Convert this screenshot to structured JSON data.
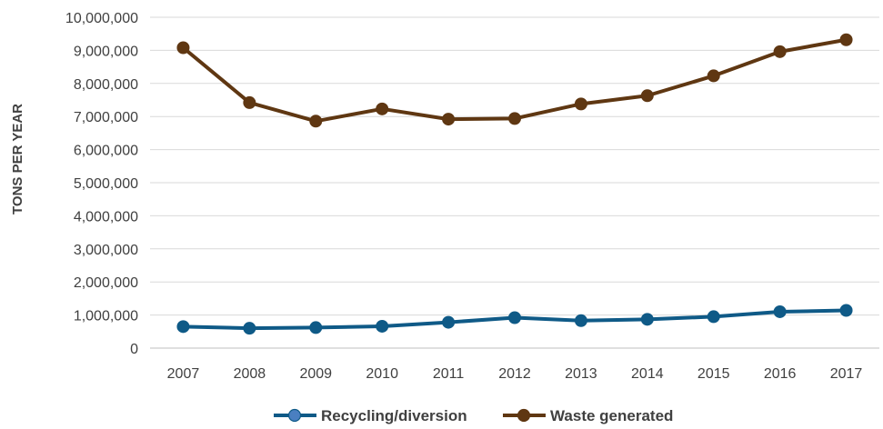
{
  "chart_data": {
    "type": "line",
    "title": "",
    "xlabel": "",
    "ylabel": "TONS PER YEAR",
    "x": [
      "2007",
      "2008",
      "2009",
      "2010",
      "2011",
      "2012",
      "2013",
      "2014",
      "2015",
      "2016",
      "2017"
    ],
    "ylim": [
      0,
      10000000
    ],
    "yticks": [
      0,
      1000000,
      2000000,
      3000000,
      4000000,
      5000000,
      6000000,
      7000000,
      8000000,
      9000000,
      10000000
    ],
    "ytick_labels": [
      "0",
      "1,000,000",
      "2,000,000",
      "3,000,000",
      "4,000,000",
      "5,000,000",
      "6,000,000",
      "7,000,000",
      "8,000,000",
      "9,000,000",
      "10,000,000"
    ],
    "grid": true,
    "legend_position": "bottom",
    "series": [
      {
        "name": "Recycling/diversion",
        "color": "#0f5a87",
        "marker_color": "#0f5a87",
        "legend_marker_color": "#4a7fc1",
        "values": [
          650000,
          600000,
          620000,
          660000,
          780000,
          920000,
          830000,
          870000,
          950000,
          1100000,
          1140000
        ]
      },
      {
        "name": "Waste generated",
        "color": "#5f3712",
        "marker_color": "#5f3712",
        "legend_marker_color": "#5f3712",
        "values": [
          9080000,
          7420000,
          6860000,
          7230000,
          6920000,
          6940000,
          7380000,
          7630000,
          8230000,
          8960000,
          9320000
        ]
      }
    ]
  }
}
